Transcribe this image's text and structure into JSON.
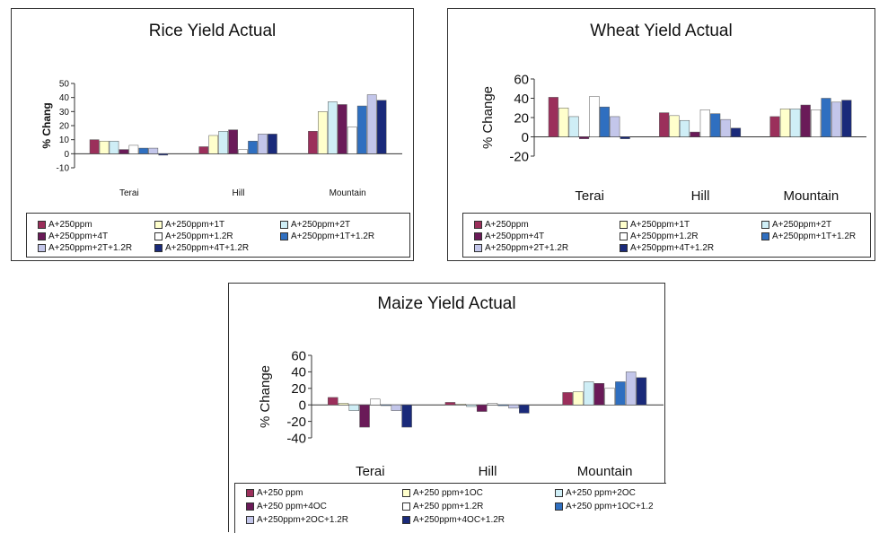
{
  "colors": [
    "#9b2f5b",
    "#ffffcc",
    "#cfeef6",
    "#6a1a58",
    "#ffffff",
    "#2f6fc0",
    "#c3c6ea",
    "#1a2a7a"
  ],
  "chart_data": [
    {
      "type": "bar",
      "title": "Rice Yield Actual",
      "ylabel": "% Chang",
      "ylim": [
        -10,
        50
      ],
      "yticks": [
        "50",
        "40",
        "30",
        "20",
        "10",
        "0",
        "-10"
      ],
      "categories": [
        "Terai",
        "Hill",
        "Mountain"
      ],
      "series": [
        {
          "name": "A+250ppm",
          "values": [
            10,
            5,
            16
          ]
        },
        {
          "name": "A+250ppm+1T",
          "values": [
            9,
            13,
            30
          ]
        },
        {
          "name": "A+250ppm+2T",
          "values": [
            9,
            16,
            37
          ]
        },
        {
          "name": "A+250ppm+4T",
          "values": [
            3,
            17,
            35
          ]
        },
        {
          "name": "A+250ppm+1.2R",
          "values": [
            6,
            3,
            19
          ]
        },
        {
          "name": "A+250ppm+1T+1.2R",
          "values": [
            4,
            9,
            34
          ]
        },
        {
          "name": "A+250ppm+2T+1.2R",
          "values": [
            4,
            14,
            42
          ]
        },
        {
          "name": "A+250ppm+4T+1.2R",
          "values": [
            -1,
            14,
            38
          ]
        }
      ]
    },
    {
      "type": "bar",
      "title": "Wheat Yield Actual",
      "ylabel": "% Change",
      "ylim": [
        -20,
        60
      ],
      "yticks": [
        "60",
        "40",
        "20",
        "0",
        "-20"
      ],
      "categories": [
        "Terai",
        "Hill",
        "Mountain"
      ],
      "series": [
        {
          "name": "A+250ppm",
          "values": [
            41,
            25,
            21
          ]
        },
        {
          "name": "A+250ppm+1T",
          "values": [
            30,
            22,
            29
          ]
        },
        {
          "name": "A+250ppm+2T",
          "values": [
            21,
            17,
            29
          ]
        },
        {
          "name": "A+250ppm+4T",
          "values": [
            -2,
            5,
            33
          ]
        },
        {
          "name": "A+250ppm+1.2R",
          "values": [
            42,
            28,
            28
          ]
        },
        {
          "name": "A+250ppm+1T+1.2R",
          "values": [
            31,
            24,
            40
          ]
        },
        {
          "name": "A+250ppm+2T+1.2R",
          "values": [
            21,
            18,
            36
          ]
        },
        {
          "name": "A+250ppm+4T+1.2R",
          "values": [
            -2,
            9,
            38
          ]
        }
      ]
    },
    {
      "type": "bar",
      "title": "Maize Yield Actual",
      "ylabel": "% Change",
      "ylim": [
        -40,
        60
      ],
      "yticks": [
        "60",
        "40",
        "20",
        "0",
        "-20",
        "-40"
      ],
      "categories": [
        "Terai",
        "Hill",
        "Mountain"
      ],
      "series": [
        {
          "name": "A+250 ppm",
          "values": [
            9,
            3,
            15
          ]
        },
        {
          "name": "A+250 ppm+1OC",
          "values": [
            2,
            1,
            16
          ]
        },
        {
          "name": "A+250 ppm+2OC",
          "values": [
            -7,
            -2,
            28
          ]
        },
        {
          "name": "A+250 ppm+4OC",
          "values": [
            -27,
            -8,
            26
          ]
        },
        {
          "name": "A+250 ppm+1.2R",
          "values": [
            7,
            2,
            20
          ]
        },
        {
          "name": "A+250 ppm+1OC+1.2",
          "values": [
            0,
            -1,
            28
          ]
        },
        {
          "name": "A+250ppm+2OC+1.2R",
          "values": [
            -7,
            -4,
            40
          ]
        },
        {
          "name": "A+250ppm+4OC+1.2R",
          "values": [
            -27,
            -10,
            33
          ]
        }
      ]
    }
  ]
}
